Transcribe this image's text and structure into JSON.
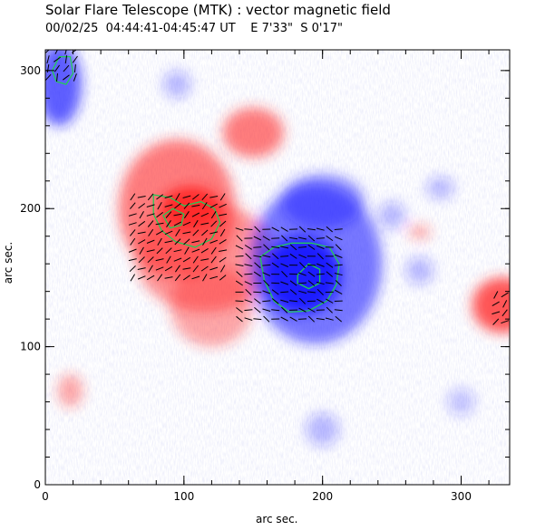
{
  "figure": {
    "title": "Solar Flare Telescope (MTK) : vector magnetic field",
    "subtitle": "00/02/25  04:44:41-04:45:47 UT    E 7'33\"  S 0'17\"",
    "xlabel": "arc sec.",
    "ylabel": "arc sec."
  },
  "axes": {
    "x_ticks": [
      0,
      100,
      200,
      300
    ],
    "y_ticks": [
      0,
      100,
      200,
      300
    ],
    "xlim": [
      0,
      335
    ],
    "ylim": [
      0,
      315
    ]
  },
  "colors": {
    "positive_polarity": "#ff2a2a",
    "negative_polarity": "#1e1eff",
    "contour": "#22cc55",
    "vectors": "#000000"
  },
  "regions": [
    {
      "polarity": "positive",
      "x": 95,
      "y": 200,
      "rx": 42,
      "ry": 50,
      "strength": 0.6
    },
    {
      "polarity": "positive",
      "x": 150,
      "y": 255,
      "rx": 22,
      "ry": 18,
      "strength": 0.6
    },
    {
      "polarity": "positive",
      "x": 115,
      "y": 165,
      "rx": 50,
      "ry": 40,
      "strength": 0.5
    },
    {
      "polarity": "positive",
      "x": 105,
      "y": 200,
      "rx": 22,
      "ry": 16,
      "strength": 1.0
    },
    {
      "polarity": "positive",
      "x": 120,
      "y": 130,
      "rx": 30,
      "ry": 30,
      "strength": 0.4
    },
    {
      "polarity": "positive",
      "x": 330,
      "y": 130,
      "rx": 22,
      "ry": 20,
      "strength": 0.8
    },
    {
      "polarity": "positive",
      "x": 18,
      "y": 68,
      "rx": 9,
      "ry": 12,
      "strength": 0.4
    },
    {
      "polarity": "positive",
      "x": 270,
      "y": 183,
      "rx": 8,
      "ry": 5,
      "strength": 0.4
    },
    {
      "polarity": "negative",
      "x": 195,
      "y": 160,
      "rx": 48,
      "ry": 58,
      "strength": 0.6
    },
    {
      "polarity": "negative",
      "x": 185,
      "y": 152,
      "rx": 28,
      "ry": 28,
      "strength": 1.0
    },
    {
      "polarity": "negative",
      "x": 10,
      "y": 290,
      "rx": 16,
      "ry": 30,
      "strength": 0.7
    },
    {
      "polarity": "negative",
      "x": 200,
      "y": 205,
      "rx": 30,
      "ry": 20,
      "strength": 0.5
    },
    {
      "polarity": "negative",
      "x": 95,
      "y": 290,
      "rx": 10,
      "ry": 10,
      "strength": 0.3
    },
    {
      "polarity": "negative",
      "x": 270,
      "y": 155,
      "rx": 10,
      "ry": 10,
      "strength": 0.3
    },
    {
      "polarity": "negative",
      "x": 285,
      "y": 215,
      "rx": 10,
      "ry": 8,
      "strength": 0.3
    },
    {
      "polarity": "negative",
      "x": 200,
      "y": 40,
      "rx": 12,
      "ry": 12,
      "strength": 0.3
    },
    {
      "polarity": "negative",
      "x": 250,
      "y": 195,
      "rx": 10,
      "ry": 10,
      "strength": 0.3
    },
    {
      "polarity": "negative",
      "x": 300,
      "y": 60,
      "rx": 10,
      "ry": 10,
      "strength": 0.25
    }
  ],
  "contours": [
    {
      "points": [
        [
          78,
          210
        ],
        [
          90,
          208
        ],
        [
          100,
          202
        ],
        [
          112,
          205
        ],
        [
          122,
          200
        ],
        [
          126,
          190
        ],
        [
          120,
          178
        ],
        [
          108,
          172
        ],
        [
          94,
          176
        ],
        [
          84,
          184
        ],
        [
          78,
          196
        ]
      ]
    },
    {
      "points": [
        [
          5,
          300
        ],
        [
          10,
          310
        ],
        [
          18,
          310
        ],
        [
          20,
          298
        ],
        [
          15,
          290
        ],
        [
          8,
          292
        ]
      ]
    },
    {
      "points": [
        [
          155,
          165
        ],
        [
          165,
          172
        ],
        [
          178,
          175
        ],
        [
          192,
          175
        ],
        [
          205,
          172
        ],
        [
          212,
          160
        ],
        [
          210,
          145
        ],
        [
          203,
          133
        ],
        [
          190,
          126
        ],
        [
          176,
          125
        ],
        [
          165,
          133
        ],
        [
          158,
          148
        ]
      ]
    },
    {
      "points": [
        [
          182,
          152
        ],
        [
          190,
          160
        ],
        [
          198,
          156
        ],
        [
          198,
          146
        ],
        [
          190,
          142
        ],
        [
          182,
          146
        ]
      ]
    },
    {
      "points": [
        [
          85,
          195
        ],
        [
          92,
          200
        ],
        [
          100,
          196
        ],
        [
          98,
          188
        ],
        [
          90,
          186
        ]
      ]
    }
  ],
  "vector_patches": [
    {
      "x": [
        63,
        128
      ],
      "y": [
        150,
        212
      ],
      "angle": 35
    },
    {
      "x": [
        140,
        215
      ],
      "y": [
        120,
        185
      ],
      "angle": -20
    },
    {
      "x": [
        2,
        22
      ],
      "y": [
        295,
        318
      ],
      "angle": 60
    },
    {
      "x": [
        325,
        335
      ],
      "y": [
        118,
        142
      ],
      "angle": 40
    }
  ]
}
